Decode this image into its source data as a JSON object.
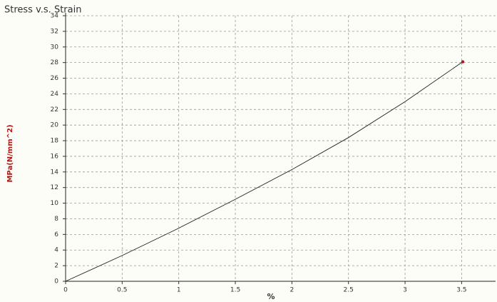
{
  "chart_data": {
    "type": "line",
    "title": "Stress v.s. Strain",
    "x_label": "%",
    "y_label": "MPa(N/mm^2)",
    "x": [
      0,
      0.5,
      1,
      1.5,
      2,
      2.5,
      3,
      3.51
    ],
    "series": [
      {
        "color": "#222222",
        "values": [
          0,
          3.3,
          6.8,
          10.5,
          14.3,
          18.4,
          23,
          28.1
        ]
      }
    ],
    "end_marker_color": "#b01818",
    "xlim": [
      0,
      3.8
    ],
    "xticks": [
      0,
      0.5,
      1,
      1.5,
      2,
      2.5,
      3,
      3.5
    ],
    "ylim": [
      0,
      34
    ],
    "yticks": [
      0,
      2,
      4,
      6,
      8,
      10,
      12,
      14,
      16,
      18,
      20,
      22,
      24,
      26,
      28,
      30,
      32,
      34
    ],
    "grid": true
  }
}
